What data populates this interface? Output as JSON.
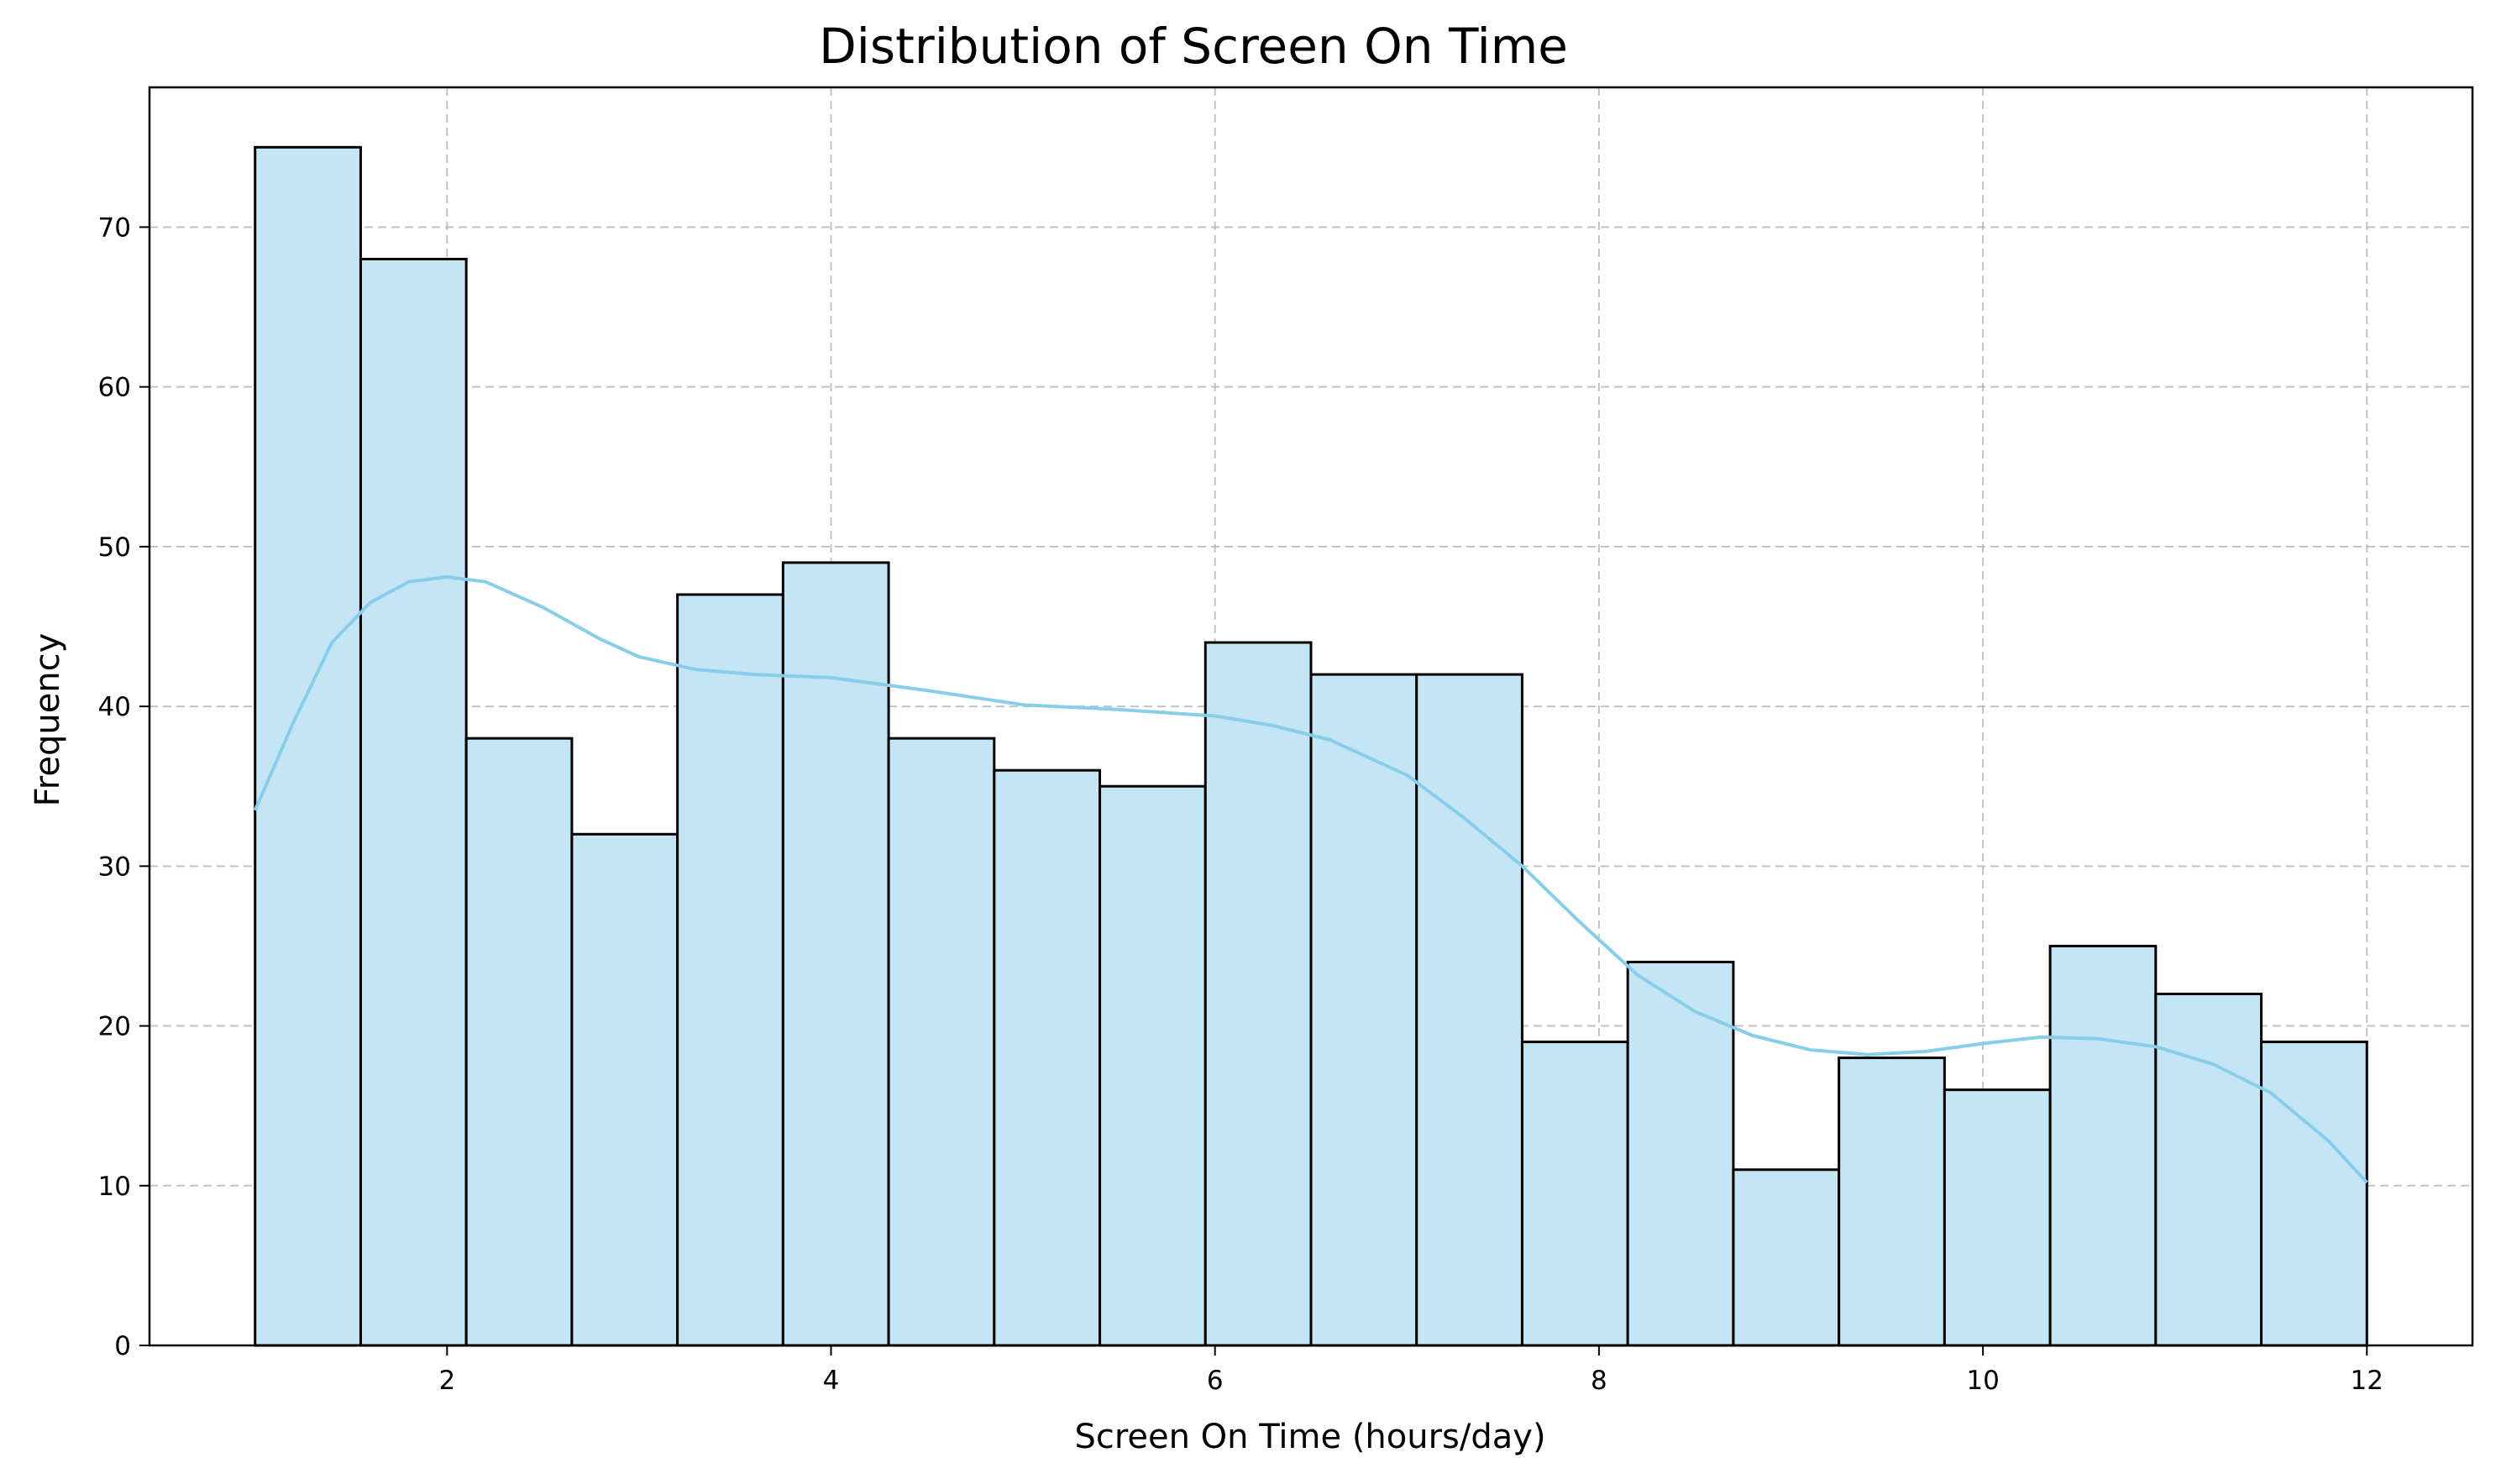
{
  "chart_data": {
    "type": "bar",
    "title": "Distribution of Screen On Time",
    "xlabel": "Screen On Time (hours/day)",
    "ylabel": "Frequency",
    "bin_range": [
      1.0,
      12.0
    ],
    "bins": 20,
    "values": [
      75,
      68,
      38,
      32,
      47,
      49,
      38,
      36,
      35,
      44,
      42,
      42,
      19,
      24,
      11,
      18,
      16,
      25,
      22,
      19
    ],
    "kde": {
      "x": [
        1.0,
        1.2,
        1.4,
        1.6,
        1.8,
        2.0,
        2.2,
        2.5,
        2.8,
        3.0,
        3.3,
        3.6,
        4.0,
        4.5,
        5.0,
        5.5,
        6.0,
        6.3,
        6.6,
        7.0,
        7.3,
        7.6,
        7.9,
        8.2,
        8.5,
        8.8,
        9.1,
        9.4,
        9.7,
        10.0,
        10.3,
        10.6,
        10.9,
        11.2,
        11.5,
        11.8,
        12.0
      ],
      "y": [
        33.5,
        39,
        44,
        46.5,
        47.8,
        48.1,
        47.8,
        46.2,
        44.2,
        43.1,
        42.3,
        42.0,
        41.8,
        41.0,
        40.1,
        39.8,
        39.4,
        38.8,
        37.9,
        35.7,
        33.0,
        30.0,
        26.5,
        23.2,
        20.9,
        19.4,
        18.5,
        18.2,
        18.4,
        18.9,
        19.3,
        19.2,
        18.7,
        17.6,
        15.8,
        12.8,
        10.2
      ]
    },
    "xlim": [
      0.45,
      12.55
    ],
    "ylim": [
      0,
      78.75
    ],
    "xticks": [
      2,
      4,
      6,
      8,
      10,
      12
    ],
    "yticks": [
      0,
      10,
      20,
      30,
      40,
      50,
      60,
      70
    ],
    "grid": true,
    "colors": {
      "bar_fill": "#c3e5f4",
      "bar_edge": "#000000",
      "kde_line": "#87ceeb",
      "grid": "#b0b0b0"
    }
  }
}
